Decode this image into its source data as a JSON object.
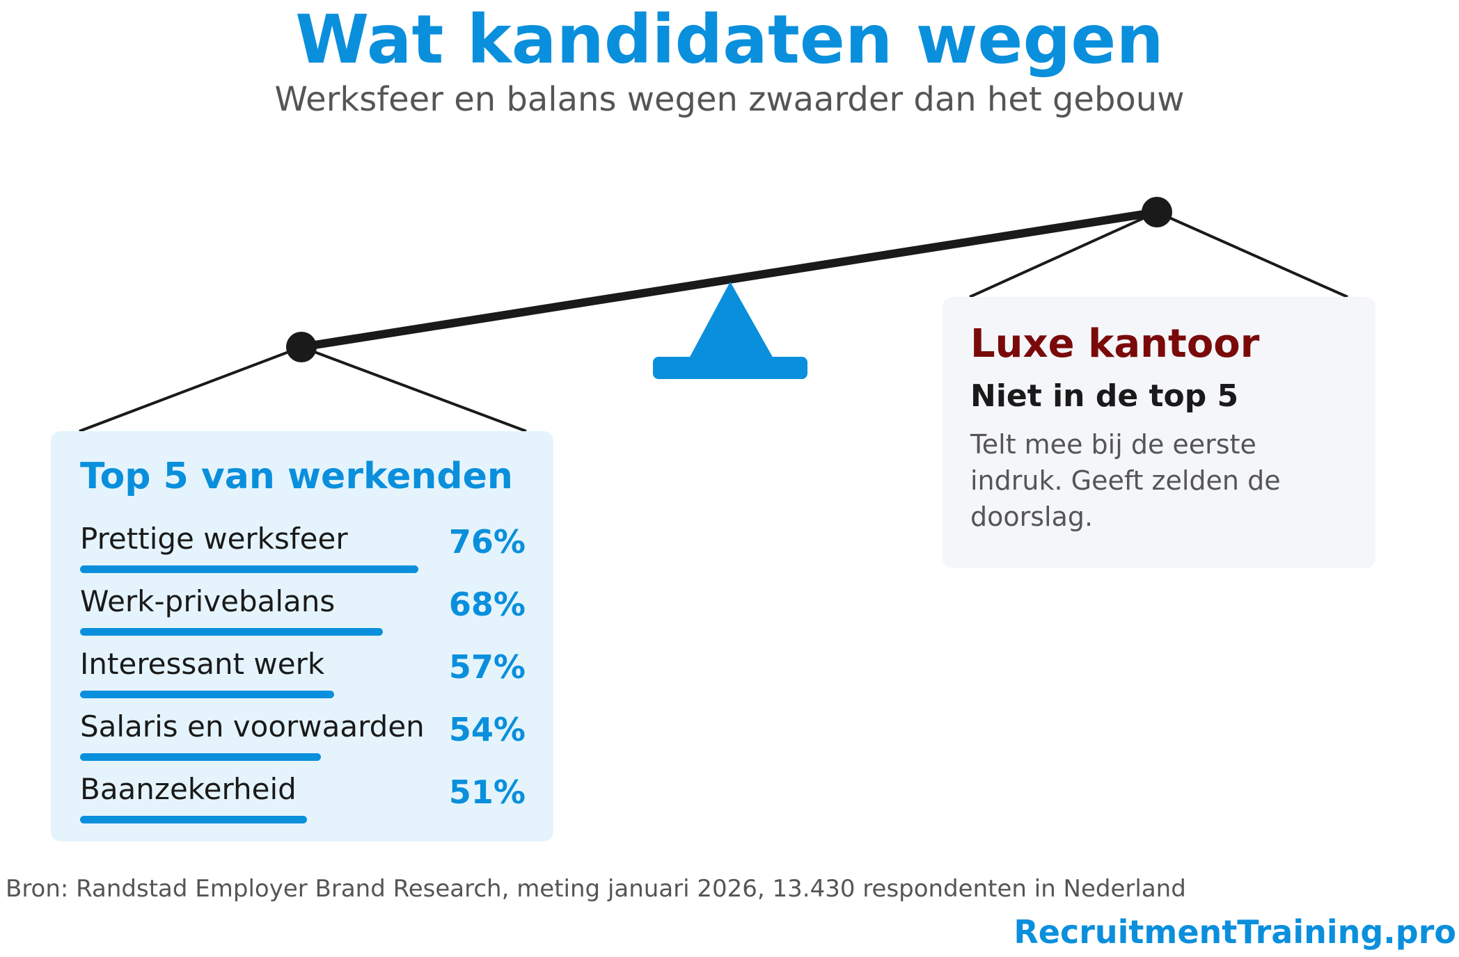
{
  "header": {
    "title": "Wat kandidaten wegen",
    "subtitle": "Werksfeer en balans wegen zwaarder dan het gebouw"
  },
  "left_panel": {
    "title": "Top 5 van werkenden",
    "items": [
      {
        "label": "Prettige werksfeer",
        "value": "76%",
        "fraction": 0.76
      },
      {
        "label": "Werk-privebalans",
        "value": "68%",
        "fraction": 0.68
      },
      {
        "label": "Interessant werk",
        "value": "57%",
        "fraction": 0.57
      },
      {
        "label": "Salaris en voorwaarden",
        "value": "54%",
        "fraction": 0.54
      },
      {
        "label": "Baanzekerheid",
        "value": "51%",
        "fraction": 0.51
      }
    ]
  },
  "right_panel": {
    "title": "Luxe kantoor",
    "subtitle": "Niet in de top 5",
    "body": "Telt mee bij de eerste indruk. Geeft zelden de doorslag."
  },
  "footer": {
    "source": "Bron: Randstad Employer Brand Research, meting januari 2026, 13.430 respondenten in Nederland",
    "brand": "RecruitmentTraining.pro"
  },
  "colors": {
    "accent": "#0a8fdc",
    "dark_red": "#7a0a0a",
    "beam": "#1a1a1a",
    "left_card_bg": "#e5f4fc",
    "right_card_bg": "#f4f6f9"
  }
}
